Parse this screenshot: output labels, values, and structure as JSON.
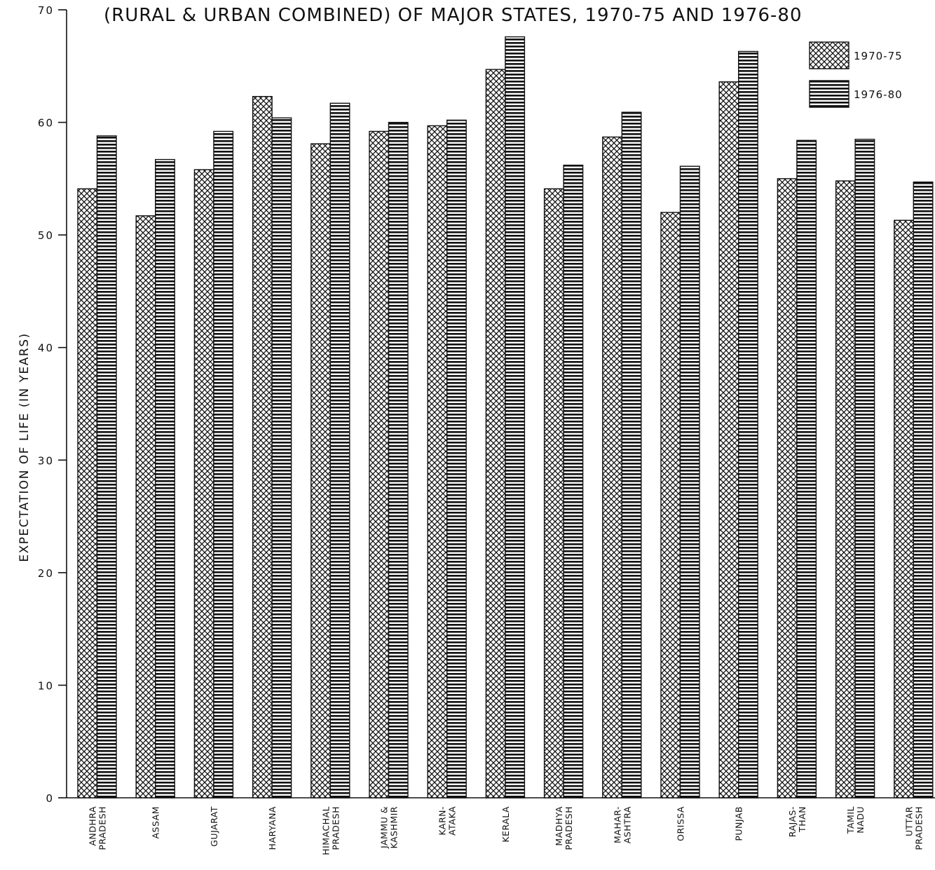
{
  "chart_data": {
    "type": "bar",
    "title": "(RURAL & URBAN COMBINED) OF MAJOR STATES, 1970-75 AND 1976-80",
    "ylabel": "EXPECTATION OF LIFE (IN YEARS)",
    "xlabel": "",
    "ylim": [
      0,
      70
    ],
    "yticks": [
      "0",
      "10",
      "20",
      "30",
      "40",
      "50",
      "60",
      "70"
    ],
    "grid": false,
    "legend_position": "top-right",
    "categories": [
      [
        "ANDHRA",
        "PRADESH"
      ],
      [
        "ASSAM"
      ],
      [
        "GUJARAT"
      ],
      [
        "HARYANA"
      ],
      [
        "HIMACHAL",
        "PRADESH"
      ],
      [
        "JAMMU &",
        "KASHMIR"
      ],
      [
        "KARN-",
        "ATAKA"
      ],
      [
        "KERALA"
      ],
      [
        "MADHYA",
        "PRADESH"
      ],
      [
        "MAHAR-",
        "ASHTRA"
      ],
      [
        "ORISSA"
      ],
      [
        "PUNJAB"
      ],
      [
        "RAJAS-",
        "THAN"
      ],
      [
        "TAMIL",
        "NADU"
      ],
      [
        "UTTAR",
        "PRADESH"
      ]
    ],
    "series": [
      {
        "name": "1970-75",
        "pattern": "crosshatch",
        "values": [
          54.1,
          51.7,
          55.8,
          62.3,
          58.1,
          59.2,
          59.7,
          64.7,
          54.1,
          58.7,
          52.0,
          63.6,
          55.0,
          54.8,
          51.3
        ]
      },
      {
        "name": "1976-80",
        "pattern": "horizontal-lines",
        "values": [
          58.8,
          56.7,
          59.2,
          60.4,
          61.7,
          60.0,
          60.2,
          67.6,
          56.2,
          60.9,
          56.1,
          66.3,
          58.4,
          58.5,
          54.7
        ]
      }
    ],
    "colors": {
      "ink": "#111111",
      "background": "#ffffff"
    }
  }
}
